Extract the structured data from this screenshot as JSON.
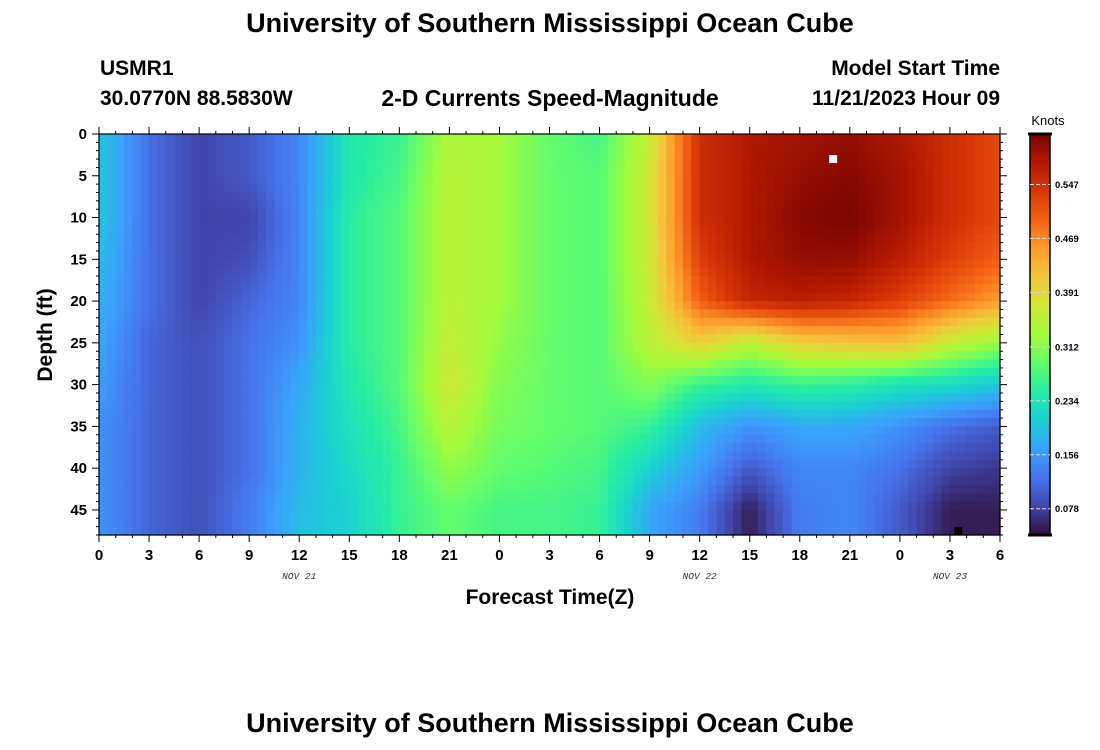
{
  "page": {
    "title": "University of Southern Mississippi Ocean Cube",
    "title_repeat": "University of Southern Mississippi Ocean Cube",
    "station_id": "USMR1",
    "coordinates": "30.0770N  88.5830W",
    "variable": "2-D Currents Speed-Magnitude",
    "model_start_label": "Model Start Time",
    "model_start_value": "11/21/2023 Hour 09"
  },
  "colors": {
    "colormap": [
      "#30123b",
      "#4145ab",
      "#4675ed",
      "#39a2fc",
      "#1bcfd4",
      "#24eca6",
      "#61fc6c",
      "#a4fc3b",
      "#d1e834",
      "#f3c63a",
      "#fe9b2d",
      "#f36315",
      "#d93806",
      "#b11901",
      "#7a0402"
    ]
  },
  "chart_data": {
    "type": "heatmap",
    "xlabel": "Forecast Time(Z)",
    "ylabel": "Depth (ft)",
    "x_tick_labels": [
      "0",
      "3",
      "6",
      "9",
      "12",
      "15",
      "18",
      "21",
      "0",
      "3",
      "6",
      "9",
      "12",
      "15",
      "18",
      "21",
      "0",
      "3",
      "6"
    ],
    "x_range_hours": [
      0,
      54
    ],
    "date_labels": [
      {
        "text": "NOV 21",
        "hour": 12
      },
      {
        "text": "NOV 22",
        "hour": 36
      },
      {
        "text": "NOV 23",
        "hour": 51
      }
    ],
    "y_tick_labels": [
      "0",
      "5",
      "10",
      "15",
      "20",
      "25",
      "30",
      "35",
      "40",
      "45"
    ],
    "y_range_ft": [
      0,
      48
    ],
    "y_inverted": true,
    "colorbar": {
      "unit": "Knots",
      "tick_labels": [
        "0.547",
        "0.469",
        "0.391",
        "0.312",
        "0.234",
        "0.156",
        "0.078"
      ],
      "ticks": [
        0.547,
        0.469,
        0.391,
        0.312,
        0.234,
        0.156,
        0.078
      ],
      "range": [
        0.04,
        0.62
      ]
    },
    "markers": [
      {
        "hour": 44,
        "depth_ft": 3,
        "color": "#ffffff"
      },
      {
        "hour": 51.5,
        "depth_ft": 47.5,
        "color": "#000000"
      }
    ],
    "grid": false,
    "values": [
      [
        0.2,
        0.12,
        0.08,
        0.1,
        0.14,
        0.24,
        0.26,
        0.34,
        0.33,
        0.29,
        0.27,
        0.36,
        0.55,
        0.58,
        0.59,
        0.6,
        0.58,
        0.55,
        0.52
      ],
      [
        0.2,
        0.12,
        0.08,
        0.1,
        0.14,
        0.24,
        0.27,
        0.35,
        0.33,
        0.29,
        0.28,
        0.37,
        0.55,
        0.58,
        0.6,
        0.61,
        0.59,
        0.55,
        0.52
      ],
      [
        0.2,
        0.12,
        0.08,
        0.08,
        0.14,
        0.25,
        0.28,
        0.35,
        0.33,
        0.29,
        0.28,
        0.37,
        0.55,
        0.58,
        0.61,
        0.62,
        0.59,
        0.55,
        0.52
      ],
      [
        0.19,
        0.12,
        0.08,
        0.09,
        0.14,
        0.25,
        0.28,
        0.35,
        0.33,
        0.29,
        0.28,
        0.37,
        0.53,
        0.58,
        0.6,
        0.6,
        0.57,
        0.53,
        0.5
      ],
      [
        0.18,
        0.12,
        0.08,
        0.11,
        0.14,
        0.25,
        0.28,
        0.35,
        0.33,
        0.29,
        0.28,
        0.36,
        0.5,
        0.56,
        0.57,
        0.56,
        0.53,
        0.49,
        0.45
      ],
      [
        0.17,
        0.11,
        0.09,
        0.12,
        0.15,
        0.25,
        0.28,
        0.36,
        0.32,
        0.29,
        0.28,
        0.35,
        0.4,
        0.35,
        0.4,
        0.41,
        0.42,
        0.36,
        0.32
      ],
      [
        0.16,
        0.11,
        0.09,
        0.12,
        0.17,
        0.24,
        0.28,
        0.37,
        0.31,
        0.29,
        0.28,
        0.31,
        0.26,
        0.24,
        0.26,
        0.25,
        0.23,
        0.22,
        0.2
      ],
      [
        0.15,
        0.11,
        0.09,
        0.12,
        0.18,
        0.23,
        0.27,
        0.35,
        0.3,
        0.29,
        0.28,
        0.26,
        0.19,
        0.15,
        0.17,
        0.17,
        0.15,
        0.12,
        0.1
      ],
      [
        0.15,
        0.11,
        0.09,
        0.12,
        0.18,
        0.22,
        0.26,
        0.32,
        0.29,
        0.28,
        0.27,
        0.21,
        0.16,
        0.1,
        0.14,
        0.14,
        0.12,
        0.08,
        0.07
      ],
      [
        0.15,
        0.11,
        0.09,
        0.13,
        0.19,
        0.21,
        0.26,
        0.29,
        0.27,
        0.27,
        0.26,
        0.17,
        0.13,
        0.05,
        0.13,
        0.14,
        0.1,
        0.05,
        0.05
      ]
    ]
  }
}
